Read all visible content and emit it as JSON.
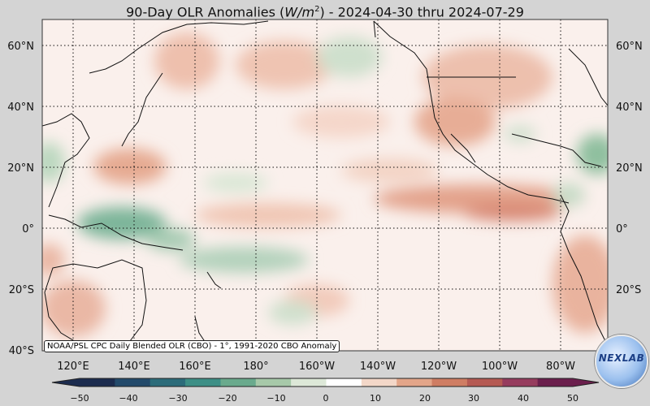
{
  "title": {
    "prefix": "90-Day OLR Anomalies (",
    "unit_base": "W/m",
    "unit_exp": "2",
    "suffix": ") - 2024-04-30 thru 2024-07-29"
  },
  "map": {
    "lat_labels": [
      "60°N",
      "40°N",
      "20°N",
      "0°",
      "20°S",
      "40°S"
    ],
    "lon_labels": [
      "120°E",
      "140°E",
      "160°E",
      "180°",
      "160°W",
      "140°W",
      "120°W",
      "100°W",
      "80°W"
    ]
  },
  "colorbar": {
    "ticks": [
      "−50",
      "−40",
      "−30",
      "−20",
      "−10",
      "0",
      "10",
      "20",
      "30",
      "40",
      "50"
    ],
    "colors": [
      "#1c2c4f",
      "#234a6b",
      "#2c6c7a",
      "#3d8f86",
      "#6aaa8d",
      "#a7c9a9",
      "#dde8d8",
      "#ffffff",
      "#f3d7c8",
      "#e3a589",
      "#cf7d63",
      "#b55a53",
      "#963c5e",
      "#6b1f4d"
    ]
  },
  "source_note": "NOAA/PSL CPC Daily Blended OLR (CBO) - 1°, 1991-2020 CBO Anomaly",
  "logo": {
    "text": "NEXLAB"
  }
}
